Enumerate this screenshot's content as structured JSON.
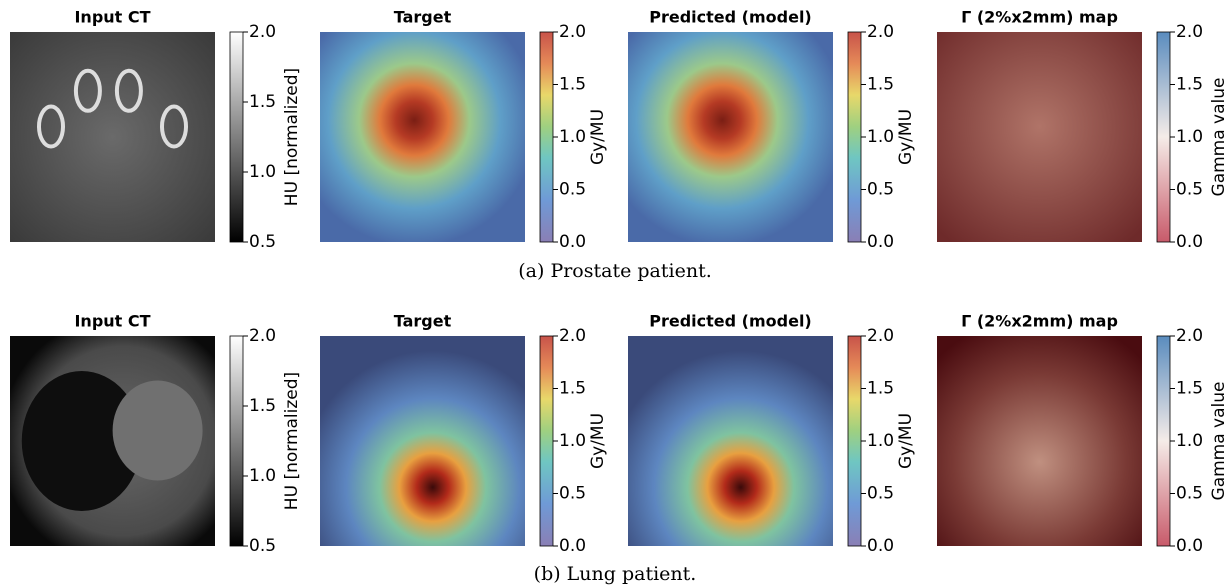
{
  "figure": {
    "rows": [
      {
        "caption": "(a) Prostate patient.",
        "panels": [
          {
            "title": "Input CT",
            "colorbar": {
              "label": "HU [normalized]",
              "colormap": "gray",
              "lim": [
                0.5,
                2.0
              ],
              "ticks": [
                {
                  "value": 0.5,
                  "label": "0.5"
                },
                {
                  "value": 1,
                  "label": "1.0"
                },
                {
                  "value": 1.5,
                  "label": "1.5"
                },
                {
                  "value": 2,
                  "label": "2.0"
                }
              ]
            }
          },
          {
            "title": "Target",
            "colorbar": {
              "label": "Gy/MU",
              "colormap": "jet",
              "lim": [
                0,
                2.0
              ],
              "ticks": [
                {
                  "value": 0,
                  "label": "0.0"
                },
                {
                  "value": 0.5,
                  "label": "0.5"
                },
                {
                  "value": 1,
                  "label": "1.0"
                },
                {
                  "value": 1.5,
                  "label": "1.5"
                },
                {
                  "value": 2,
                  "label": "2.0"
                }
              ]
            }
          },
          {
            "title": "Predicted (model)",
            "colorbar": {
              "label": "Gy/MU",
              "colormap": "jet",
              "lim": [
                0,
                2.0
              ],
              "ticks": [
                {
                  "value": 0,
                  "label": "0.0"
                },
                {
                  "value": 0.5,
                  "label": "0.5"
                },
                {
                  "value": 1,
                  "label": "1.0"
                },
                {
                  "value": 1.5,
                  "label": "1.5"
                },
                {
                  "value": 2,
                  "label": "2.0"
                }
              ]
            }
          },
          {
            "title": "Γ (2%x2mm) map",
            "colorbar": {
              "label": "Gamma value",
              "colormap": "RdBu",
              "lim": [
                0,
                2.0
              ],
              "ticks": [
                {
                  "value": 0,
                  "label": "0.0"
                },
                {
                  "value": 0.5,
                  "label": "0.5"
                },
                {
                  "value": 1,
                  "label": "1.0"
                },
                {
                  "value": 1.5,
                  "label": "1.5"
                },
                {
                  "value": 2,
                  "label": "2.0"
                }
              ]
            }
          }
        ]
      },
      {
        "caption": "(b) Lung patient.",
        "panels": [
          {
            "title": "Input CT",
            "colorbar": {
              "label": "HU [normalized]",
              "colormap": "gray",
              "lim": [
                0.5,
                2.0
              ],
              "ticks": [
                {
                  "value": 0.5,
                  "label": "0.5"
                },
                {
                  "value": 1,
                  "label": "1.0"
                },
                {
                  "value": 1.5,
                  "label": "1.5"
                },
                {
                  "value": 2,
                  "label": "2.0"
                }
              ]
            }
          },
          {
            "title": "Target",
            "colorbar": {
              "label": "Gy/MU",
              "colormap": "jet",
              "lim": [
                0,
                2.0
              ],
              "ticks": [
                {
                  "value": 0,
                  "label": "0.0"
                },
                {
                  "value": 0.5,
                  "label": "0.5"
                },
                {
                  "value": 1,
                  "label": "1.0"
                },
                {
                  "value": 1.5,
                  "label": "1.5"
                },
                {
                  "value": 2,
                  "label": "2.0"
                }
              ]
            }
          },
          {
            "title": "Predicted (model)",
            "colorbar": {
              "label": "Gy/MU",
              "colormap": "jet",
              "lim": [
                0,
                2.0
              ],
              "ticks": [
                {
                  "value": 0,
                  "label": "0.0"
                },
                {
                  "value": 0.5,
                  "label": "0.5"
                },
                {
                  "value": 1,
                  "label": "1.0"
                },
                {
                  "value": 1.5,
                  "label": "1.5"
                },
                {
                  "value": 2,
                  "label": "2.0"
                }
              ]
            }
          },
          {
            "title": "Γ (2%x2mm) map",
            "colorbar": {
              "label": "Gamma value",
              "colormap": "RdBu",
              "lim": [
                0,
                2.0
              ],
              "ticks": [
                {
                  "value": 0,
                  "label": "0.0"
                },
                {
                  "value": 0.5,
                  "label": "0.5"
                },
                {
                  "value": 1,
                  "label": "1.0"
                },
                {
                  "value": 1.5,
                  "label": "1.5"
                },
                {
                  "value": 2,
                  "label": "2.0"
                }
              ]
            }
          }
        ]
      }
    ]
  }
}
